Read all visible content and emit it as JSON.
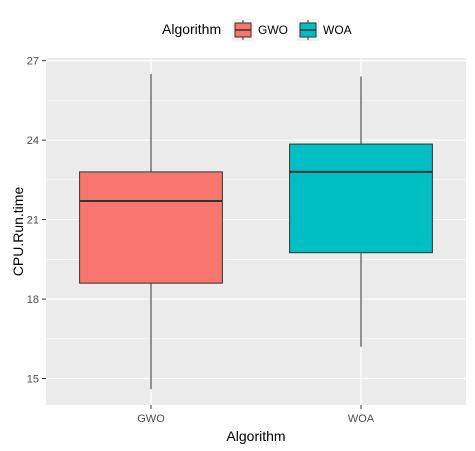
{
  "chart_data": {
    "type": "boxplot",
    "categories": [
      "GWO",
      "WOA"
    ],
    "boxes": [
      {
        "category": "GWO",
        "min": 14.6,
        "q1": 18.6,
        "median": 21.7,
        "q3": 22.8,
        "max": 26.5,
        "color": "#F8766D"
      },
      {
        "category": "WOA",
        "min": 16.2,
        "q1": 19.75,
        "median": 22.8,
        "q3": 23.85,
        "max": 26.4,
        "color": "#00BFC4"
      }
    ],
    "xlabel": "Algorithm",
    "ylabel": "CPU.Run.time",
    "ylim": [
      14.0,
      27.1
    ],
    "yticks": [
      15,
      18,
      21,
      24,
      27
    ],
    "grid": true,
    "legend": {
      "title": "Algorithm",
      "position": "top",
      "entries": [
        {
          "label": "GWO",
          "color": "#F8766D"
        },
        {
          "label": "WOA",
          "color": "#00BFC4"
        }
      ]
    },
    "colors": {
      "panel_background": "#EBEBEB",
      "grid": "#FFFFFF",
      "outline": "#333333"
    }
  }
}
